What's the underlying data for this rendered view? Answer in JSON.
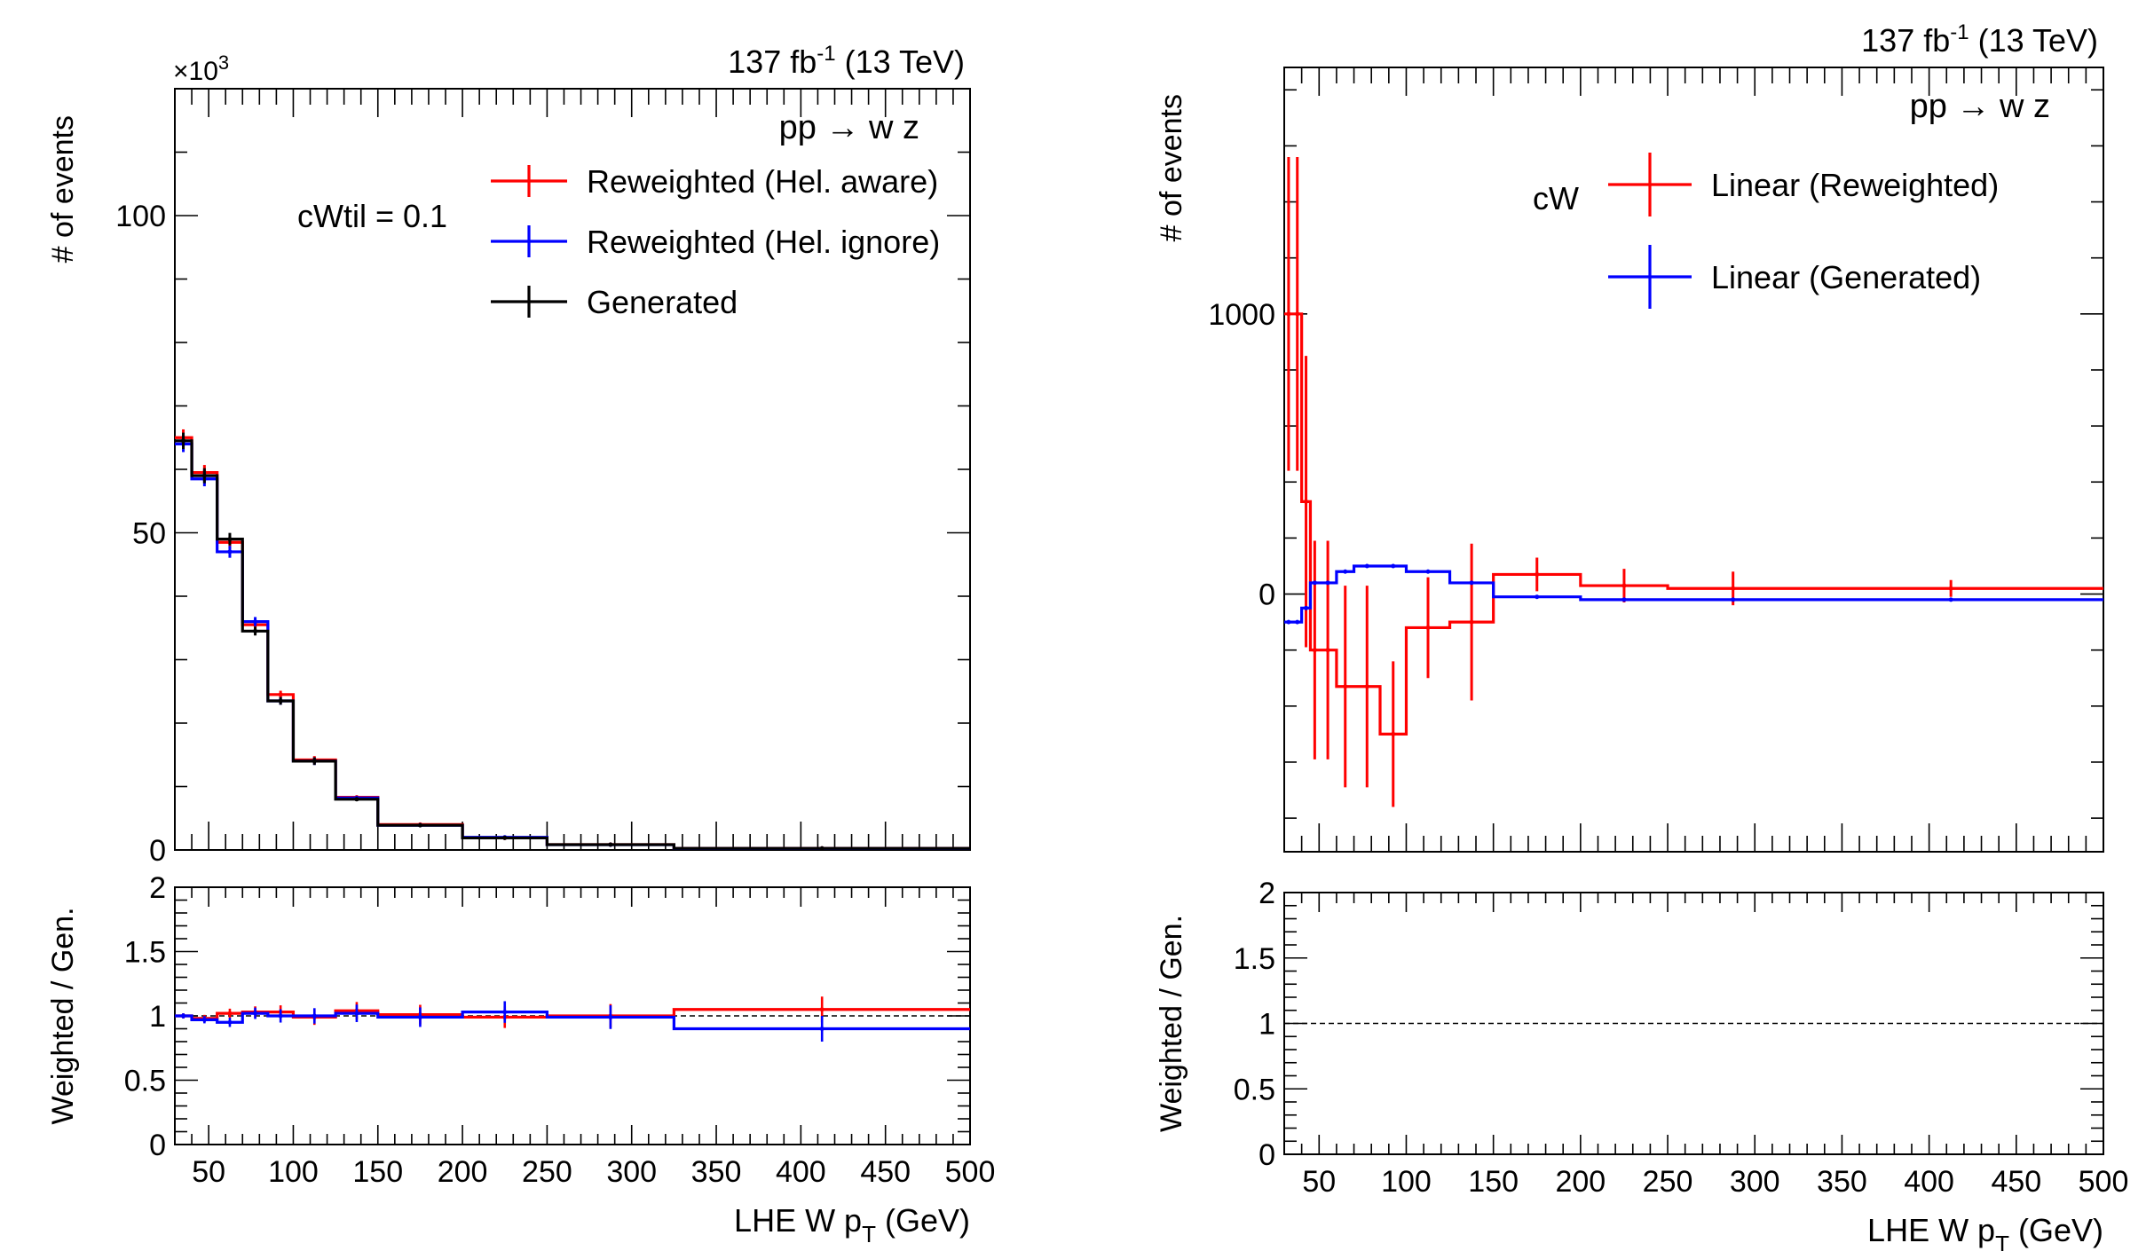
{
  "chart_data": [
    {
      "id": "left",
      "type": "line",
      "drawstyle": "steps",
      "lumi": "137 fb",
      "lumi_exp": "-1",
      "energy": "(13 TeV)",
      "process": "pp → w z",
      "multiplier_label": "×10",
      "multiplier_exp": "3",
      "coupling_label": "cWtil = 0.1",
      "ylabel": "# of events",
      "xlabel": "LHE W p",
      "xlabel_sub": "T",
      "xlabel_unit": "(GeV)",
      "xlim": [
        30,
        500
      ],
      "ylim": [
        0,
        120
      ],
      "yticks": [
        0,
        50,
        100
      ],
      "xticks": [
        50,
        100,
        150,
        200,
        250,
        300,
        350,
        400,
        450,
        500
      ],
      "bin_edges": [
        30,
        40,
        55,
        70,
        85,
        100,
        125,
        150,
        200,
        250,
        325,
        500
      ],
      "series": [
        {
          "name": "Reweighted (Hel. aware)",
          "color": "#ff0000",
          "values": [
            65,
            59.5,
            48.5,
            35.5,
            24.5,
            14.2,
            8.3,
            4.0,
            1.9,
            0.85,
            0.25
          ]
        },
        {
          "name": "Reweighted (Hel. ignore)",
          "color": "#0000ff",
          "values": [
            64,
            58.5,
            47,
            36,
            23.5,
            14.0,
            8.2,
            3.9,
            2.0,
            0.83,
            0.22
          ]
        },
        {
          "name": "Generated",
          "color": "#000000",
          "values": [
            64.5,
            59,
            49,
            34.5,
            23.5,
            14.0,
            8.0,
            3.9,
            1.9,
            0.84,
            0.24
          ]
        }
      ],
      "ratio": {
        "ylabel": "Weighted / Gen.",
        "ylim": [
          0,
          2
        ],
        "yticks": [
          0,
          0.5,
          1,
          1.5,
          2
        ],
        "reference": 1,
        "series": [
          {
            "name": "Reweighted (Hel. aware)",
            "color": "#ff0000",
            "values": [
              1.0,
              0.98,
              1.02,
              1.03,
              1.03,
              0.99,
              1.04,
              1.01,
              0.99,
              1.0,
              1.05
            ]
          },
          {
            "name": "Reweighted (Hel. ignore)",
            "color": "#0000ff",
            "values": [
              1.0,
              0.97,
              0.95,
              1.02,
              1.0,
              1.0,
              1.02,
              0.99,
              1.03,
              0.99,
              0.9
            ]
          }
        ]
      }
    },
    {
      "id": "right",
      "type": "line",
      "drawstyle": "steps",
      "lumi": "137 fb",
      "lumi_exp": "-1",
      "energy": "(13 TeV)",
      "process": "pp → w z",
      "coupling_label": "cW",
      "ylabel": "# of events",
      "xlabel": "LHE W p",
      "xlabel_sub": "T",
      "xlabel_unit": "(GeV)",
      "xlim": [
        30,
        500
      ],
      "ylim": [
        -920,
        1880
      ],
      "yticks": [
        0,
        1000
      ],
      "xticks": [
        50,
        100,
        150,
        200,
        250,
        300,
        350,
        400,
        450,
        500
      ],
      "series": [
        {
          "name": "Linear (Reweighted)",
          "color": "#ff0000",
          "bin_edges": [
            30,
            35,
            40,
            45,
            50,
            60,
            70,
            85,
            100,
            125,
            150,
            200,
            250,
            325,
            500
          ],
          "values": [
            1000,
            1000,
            330,
            -200,
            -200,
            -330,
            -330,
            -500,
            -120,
            -100,
            70,
            30,
            20,
            20
          ],
          "errors": [
            560,
            560,
            520,
            390,
            390,
            360,
            360,
            260,
            180,
            280,
            60,
            60,
            60,
            30
          ]
        },
        {
          "name": "Linear (Generated)",
          "color": "#0000ff",
          "bin_edges": [
            30,
            35,
            40,
            45,
            50,
            60,
            70,
            85,
            100,
            125,
            150,
            200,
            250,
            325,
            500
          ],
          "values": [
            -100,
            -100,
            -50,
            40,
            40,
            80,
            100,
            100,
            80,
            40,
            -10,
            -20,
            -20,
            -20
          ]
        }
      ],
      "ratio": {
        "ylabel": "Weighted / Gen.",
        "ylim": [
          0,
          2
        ],
        "yticks": [
          0,
          0.5,
          1,
          1.5,
          2
        ],
        "reference": 1,
        "series": []
      }
    }
  ]
}
